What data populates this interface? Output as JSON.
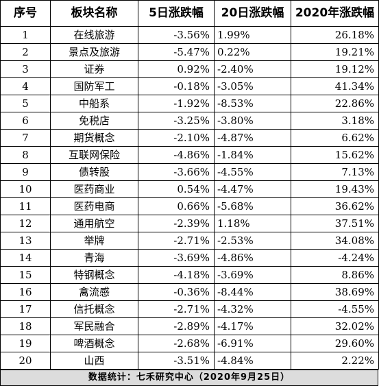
{
  "table": {
    "headers": {
      "rank": "序号",
      "name": "板块名称",
      "d5": "5日涨跌幅",
      "d20": "20日涨跌幅",
      "ytd": "2020年涨跌幅"
    },
    "rows": [
      {
        "rank": "1",
        "name": "在线旅游",
        "d5": "-3.56%",
        "d20": "1.99%",
        "ytd": "26.18%"
      },
      {
        "rank": "2",
        "name": "景点及旅游",
        "d5": "-5.47%",
        "d20": "0.22%",
        "ytd": "19.21%"
      },
      {
        "rank": "3",
        "name": "证券",
        "d5": "0.92%",
        "d20": "-2.40%",
        "ytd": "19.12%"
      },
      {
        "rank": "4",
        "name": "国防军工",
        "d5": "-0.18%",
        "d20": "-3.05%",
        "ytd": "41.34%"
      },
      {
        "rank": "5",
        "name": "中船系",
        "d5": "-1.92%",
        "d20": "-8.53%",
        "ytd": "22.86%"
      },
      {
        "rank": "6",
        "name": "免税店",
        "d5": "-3.25%",
        "d20": "-3.80%",
        "ytd": "3.18%"
      },
      {
        "rank": "7",
        "name": "期货概念",
        "d5": "-2.10%",
        "d20": "-4.87%",
        "ytd": "6.62%"
      },
      {
        "rank": "8",
        "name": "互联网保险",
        "d5": "-4.86%",
        "d20": "-1.84%",
        "ytd": "15.62%"
      },
      {
        "rank": "9",
        "name": "债转股",
        "d5": "-3.66%",
        "d20": "-4.55%",
        "ytd": "7.13%"
      },
      {
        "rank": "10",
        "name": "医药商业",
        "d5": "0.54%",
        "d20": "-4.47%",
        "ytd": "19.43%"
      },
      {
        "rank": "11",
        "name": "医药电商",
        "d5": "0.66%",
        "d20": "-5.68%",
        "ytd": "36.62%"
      },
      {
        "rank": "12",
        "name": "通用航空",
        "d5": "-2.39%",
        "d20": "1.18%",
        "ytd": "37.51%"
      },
      {
        "rank": "13",
        "name": "举牌",
        "d5": "-2.71%",
        "d20": "-2.53%",
        "ytd": "34.08%"
      },
      {
        "rank": "14",
        "name": "青海",
        "d5": "-3.69%",
        "d20": "-4.86%",
        "ytd": "-4.24%"
      },
      {
        "rank": "15",
        "name": "特钢概念",
        "d5": "-4.18%",
        "d20": "-3.69%",
        "ytd": "8.86%"
      },
      {
        "rank": "16",
        "name": "禽流感",
        "d5": "-0.36%",
        "d20": "-8.44%",
        "ytd": "38.69%"
      },
      {
        "rank": "17",
        "name": "信托概念",
        "d5": "-2.71%",
        "d20": "-4.32%",
        "ytd": "-4.55%"
      },
      {
        "rank": "18",
        "name": "军民融合",
        "d5": "-2.89%",
        "d20": "-4.17%",
        "ytd": "32.02%"
      },
      {
        "rank": "19",
        "name": "啤酒概念",
        "d5": "-2.68%",
        "d20": "-6.91%",
        "ytd": "29.60%"
      },
      {
        "rank": "20",
        "name": "山西",
        "d5": "-3.51%",
        "d20": "-4.84%",
        "ytd": "2.22%"
      }
    ]
  },
  "footer": {
    "text": "数据统计：七禾研究中心（2020年9月25日）"
  },
  "colors": {
    "footer_bg": "#dcdcdc",
    "border": "#000000"
  }
}
